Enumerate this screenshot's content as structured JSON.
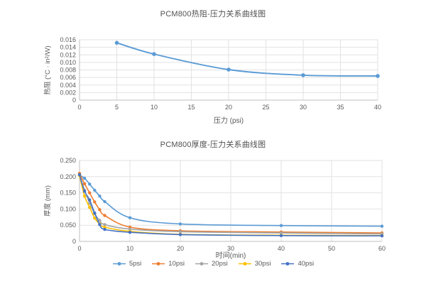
{
  "colors": {
    "grid": "#e2e2e2",
    "axis": "#bfbfbf",
    "tick_text": "#595959",
    "title_text": "#515151",
    "series_blue": "#5B9BD5",
    "series_orange": "#ED7D31",
    "series_gray": "#A5A5A5",
    "series_yellow": "#FFC000",
    "series_darkblue": "#4472C4"
  },
  "chart_data": [
    {
      "type": "line",
      "title": "PCM800热阻-压力关系曲线图",
      "xlabel": "压力 (psi)",
      "ylabel": "热阻 (°C · in²/W)",
      "xlim": [
        0,
        40
      ],
      "ylim": [
        0,
        0.016
      ],
      "xticks": [
        0,
        5,
        10,
        15,
        20,
        25,
        30,
        35,
        40
      ],
      "yticks": [
        0,
        0.002,
        0.004,
        0.006,
        0.008,
        0.01,
        0.012,
        0.014,
        0.016
      ],
      "ytick_labels": [
        "0",
        "0.002",
        "0.004",
        "0.006",
        "0.008",
        "0.010",
        "0.012",
        "0.014",
        "0.016"
      ],
      "grid": true,
      "legend": false,
      "smooth": true,
      "series": [
        {
          "name": "热阻",
          "color": "#5B9BD5",
          "x": [
            5,
            10,
            20,
            30,
            40
          ],
          "y": [
            0.0152,
            0.0122,
            0.0081,
            0.0066,
            0.0064
          ]
        }
      ]
    },
    {
      "type": "line",
      "title": "PCM800厚度-压力关系曲线图",
      "xlabel": "时间(min)",
      "ylabel": "厚度 (mm)",
      "xlim": [
        0,
        60
      ],
      "ylim": [
        0,
        0.25
      ],
      "xticks": [
        0,
        10,
        20,
        30,
        40,
        50,
        60
      ],
      "yticks": [
        0,
        0.05,
        0.1,
        0.15,
        0.2,
        0.25
      ],
      "ytick_labels": [
        "0",
        "0.050",
        "0.100",
        "0.150",
        "0.200",
        "0.250"
      ],
      "grid": true,
      "legend": true,
      "legend_position": "bottom",
      "smooth": true,
      "x": [
        0,
        1,
        2,
        3,
        4,
        5,
        10,
        20,
        40,
        60
      ],
      "series": [
        {
          "name": "5psi",
          "color": "#5B9BD5",
          "y": [
            0.205,
            0.195,
            0.177,
            0.158,
            0.14,
            0.123,
            0.073,
            0.054,
            0.049,
            0.047
          ]
        },
        {
          "name": "10psi",
          "color": "#ED7D31",
          "y": [
            0.21,
            0.178,
            0.15,
            0.122,
            0.098,
            0.08,
            0.044,
            0.033,
            0.029,
            0.026
          ]
        },
        {
          "name": "20psi",
          "color": "#A5A5A5",
          "y": [
            0.205,
            0.158,
            0.118,
            0.085,
            0.065,
            0.052,
            0.038,
            0.03,
            0.026,
            0.023
          ]
        },
        {
          "name": "30psi",
          "color": "#FFC000",
          "y": [
            0.203,
            0.14,
            0.105,
            0.072,
            0.054,
            0.044,
            0.031,
            0.022,
            0.019,
            0.018
          ]
        },
        {
          "name": "40psi",
          "color": "#4472C4",
          "y": [
            0.206,
            0.155,
            0.128,
            0.088,
            0.052,
            0.037,
            0.028,
            0.021,
            0.018,
            0.017
          ]
        }
      ]
    }
  ]
}
